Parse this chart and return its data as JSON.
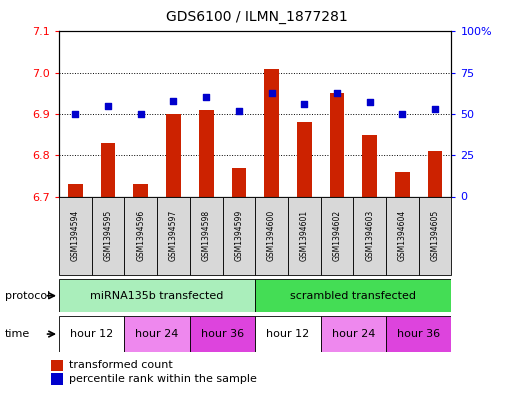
{
  "title": "GDS6100 / ILMN_1877281",
  "samples": [
    "GSM1394594",
    "GSM1394595",
    "GSM1394596",
    "GSM1394597",
    "GSM1394598",
    "GSM1394599",
    "GSM1394600",
    "GSM1394601",
    "GSM1394602",
    "GSM1394603",
    "GSM1394604",
    "GSM1394605"
  ],
  "bar_values": [
    6.73,
    6.83,
    6.73,
    6.9,
    6.91,
    6.77,
    7.01,
    6.88,
    6.95,
    6.85,
    6.76,
    6.81
  ],
  "dot_values": [
    50,
    55,
    50,
    58,
    60,
    52,
    63,
    56,
    63,
    57,
    50,
    53
  ],
  "ylim": [
    6.7,
    7.1
  ],
  "yticks": [
    6.7,
    6.8,
    6.9,
    7.0,
    7.1
  ],
  "y2lim": [
    0,
    100
  ],
  "y2ticks": [
    0,
    25,
    50,
    75,
    100
  ],
  "y2ticklabels": [
    "0",
    "25",
    "50",
    "75",
    "100%"
  ],
  "bar_color": "#cc2200",
  "dot_color": "#0000cc",
  "bar_bottom": 6.7,
  "protocol_groups": [
    {
      "label": "miRNA135b transfected",
      "start": 0,
      "end": 6,
      "color": "#aaeebb"
    },
    {
      "label": "scrambled transfected",
      "start": 6,
      "end": 12,
      "color": "#44dd55"
    }
  ],
  "time_groups": [
    {
      "label": "hour 12",
      "start": 0,
      "end": 2,
      "color": "#ffffff"
    },
    {
      "label": "hour 24",
      "start": 2,
      "end": 4,
      "color": "#ee88ee"
    },
    {
      "label": "hour 36",
      "start": 4,
      "end": 6,
      "color": "#dd44dd"
    },
    {
      "label": "hour 12",
      "start": 6,
      "end": 8,
      "color": "#ffffff"
    },
    {
      "label": "hour 24",
      "start": 8,
      "end": 10,
      "color": "#ee88ee"
    },
    {
      "label": "hour 36",
      "start": 10,
      "end": 12,
      "color": "#dd44dd"
    }
  ],
  "protocol_label": "protocol",
  "time_label": "time",
  "legend_bar_label": "transformed count",
  "legend_dot_label": "percentile rank within the sample",
  "sample_bg_color": "#d8d8d8",
  "plot_bg_color": "#ffffff",
  "grid_color": "#000000"
}
